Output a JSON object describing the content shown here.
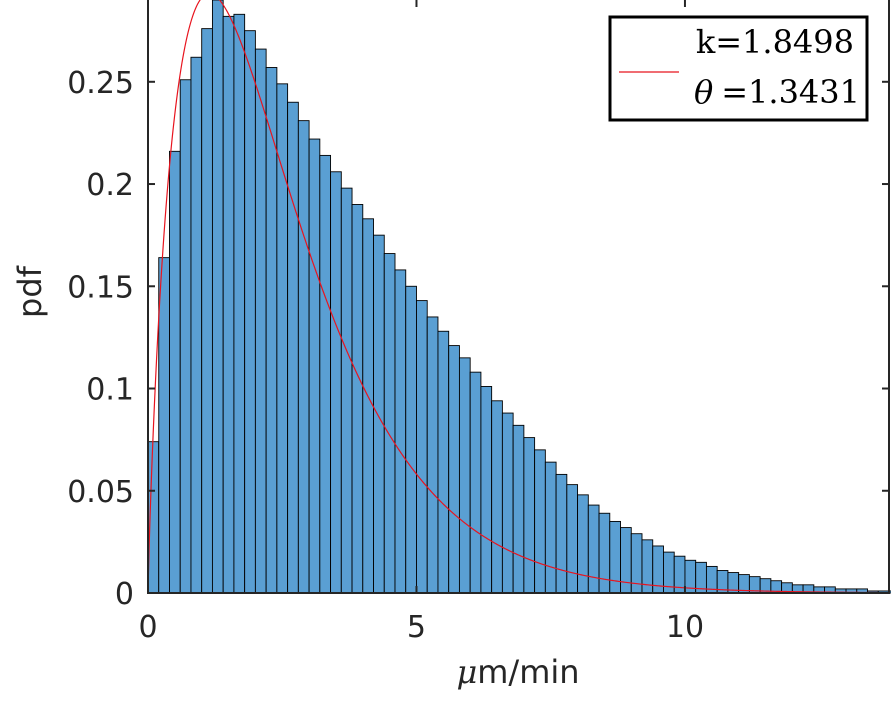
{
  "chart_data": {
    "type": "bar",
    "xlabel_symbol": "μ",
    "xlabel_unit": "m/min",
    "ylabel": "pdf",
    "xlim": [
      0,
      13.8
    ],
    "ylim": [
      0,
      0.29
    ],
    "xticks": [
      {
        "value": 0,
        "label": "0"
      },
      {
        "value": 5,
        "label": "5"
      },
      {
        "value": 10,
        "label": "10"
      }
    ],
    "yticks": [
      {
        "value": 0,
        "label": "0"
      },
      {
        "value": 0.05,
        "label": "0.05"
      },
      {
        "value": 0.1,
        "label": "0.1"
      },
      {
        "value": 0.15,
        "label": "0.15"
      },
      {
        "value": 0.2,
        "label": "0.2"
      },
      {
        "value": 0.25,
        "label": "0.25"
      }
    ],
    "bin_width": 0.2,
    "bin_start": 0,
    "values": [
      0.074,
      0.164,
      0.216,
      0.251,
      0.262,
      0.276,
      0.29,
      0.282,
      0.283,
      0.275,
      0.266,
      0.257,
      0.249,
      0.24,
      0.231,
      0.222,
      0.214,
      0.206,
      0.198,
      0.19,
      0.183,
      0.175,
      0.166,
      0.158,
      0.15,
      0.143,
      0.135,
      0.128,
      0.121,
      0.115,
      0.108,
      0.101,
      0.094,
      0.088,
      0.082,
      0.076,
      0.07,
      0.064,
      0.058,
      0.053,
      0.048,
      0.043,
      0.039,
      0.035,
      0.032,
      0.029,
      0.026,
      0.023,
      0.02,
      0.018,
      0.016,
      0.015,
      0.013,
      0.011,
      0.01,
      0.009,
      0.008,
      0.007,
      0.006,
      0.005,
      0.004,
      0.004,
      0.003,
      0.003,
      0.002,
      0.002,
      0.002,
      0.001,
      0.001,
      0.001,
      0.001,
      0.001,
      0.0005,
      0.0005,
      0.0004,
      0.0003,
      0.0003,
      0.0002,
      0.0002,
      0.0002
    ],
    "fit": {
      "k": 1.8498,
      "theta": 1.3431
    },
    "legend": {
      "placement": "top-right",
      "line1": "k=1.8498",
      "theta_symbol": "θ",
      "theta_value": "=1.3431"
    },
    "grid": false,
    "bar_color": "#5a9fd3",
    "bar_edge_color": "#000000",
    "fit_color": "#e8141e"
  }
}
